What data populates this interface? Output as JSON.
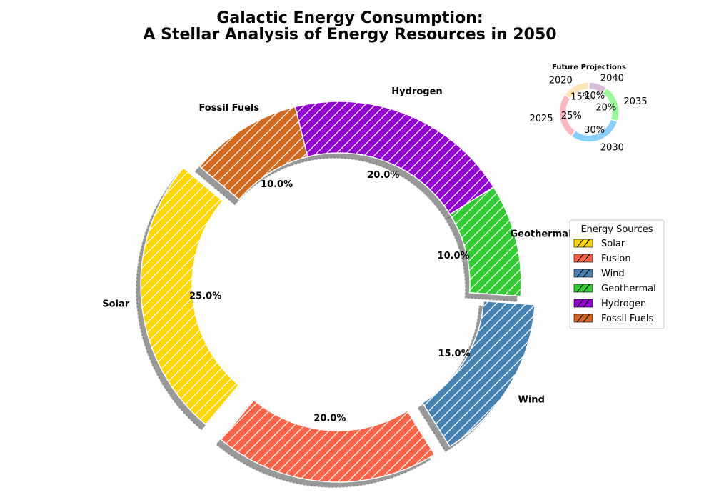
{
  "chart_data": [
    {
      "type": "pie",
      "donut": true,
      "title": "Galactic Energy Consumption:\nA Stellar Analysis of Energy Resources in 2050",
      "categories": [
        "Solar",
        "Fusion",
        "Wind",
        "Geothermal",
        "Hydrogen",
        "Fossil Fuels"
      ],
      "values": [
        25,
        20,
        15,
        10,
        20,
        10
      ],
      "value_labels": [
        "25.0%",
        "20.0%",
        "15.0%",
        "10.0%",
        "20.0%",
        "10.0%"
      ],
      "exploded": [
        true,
        true,
        true,
        false,
        false,
        false
      ],
      "shadow": true,
      "colors": [
        "#FFD700",
        "#FF6347",
        "#4682B4",
        "#32CD32",
        "#9400D3",
        "#D2691E"
      ],
      "hatch": "diagonal",
      "legend": {
        "title": "Energy Sources",
        "placement": "right",
        "entries": [
          "Solar",
          "Fusion",
          "Wind",
          "Geothermal",
          "Hydrogen",
          "Fossil Fuels"
        ]
      }
    },
    {
      "type": "pie",
      "donut": true,
      "title": "Future Projections",
      "categories": [
        "2020",
        "2025",
        "2030",
        "2035",
        "2040"
      ],
      "values": [
        15,
        25,
        30,
        20,
        10
      ],
      "value_labels": [
        "15%",
        "25%",
        "30%",
        "20%",
        "10%"
      ],
      "colors": [
        "#FFE4B5",
        "#FFB6C1",
        "#87CEFA",
        "#98FB98",
        "#D8BFD8"
      ],
      "placement": "top-right"
    }
  ]
}
